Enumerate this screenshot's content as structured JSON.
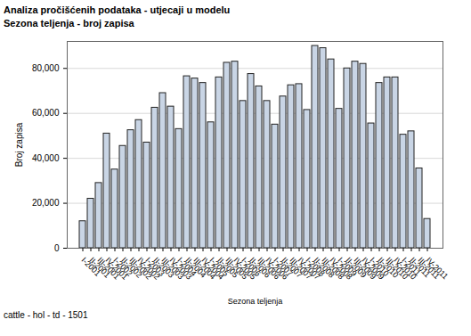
{
  "chart_data": {
    "type": "bar",
    "title": "Analiza pročišćenih podataka - utjecaji u modelu",
    "subtitle": "Sezona teljenja - broj zapisa",
    "caption": "cattle - hol - td - 1501",
    "x_label": "Sezona teljenja",
    "y_label": "Broj zapisa",
    "categories": [
      "I-2001",
      "II-2001",
      "III-2001",
      "IV-2001",
      "I-2002",
      "II-2002",
      "III-2002",
      "IV-2002",
      "I-2003",
      "II-2003",
      "III-2003",
      "IV-2003",
      "I-2004",
      "II-2004",
      "III-2004",
      "IV-2004",
      "I-2005",
      "II-2005",
      "III-2005",
      "IV-2005",
      "I-2006",
      "II-2006",
      "III-2006",
      "IV-2006",
      "I-2007",
      "II-2007",
      "III-2007",
      "IV-2007",
      "I-2008",
      "II-2008",
      "III-2008",
      "IV-2008",
      "I-2009",
      "II-2009",
      "III-2009",
      "IV-2009",
      "I-2010",
      "II-2010",
      "III-2010",
      "IV-2010",
      "I-2011",
      "II-2011",
      "III-2011",
      "IV-2011"
    ],
    "values": [
      12000,
      22000,
      29000,
      51000,
      35000,
      45500,
      52500,
      57000,
      47000,
      62500,
      69000,
      63000,
      53000,
      76500,
      75500,
      73500,
      56000,
      76000,
      82500,
      83000,
      65500,
      77500,
      72000,
      65500,
      55000,
      67500,
      72500,
      73000,
      61500,
      90000,
      89000,
      84000,
      62000,
      80000,
      83000,
      82000,
      55500,
      73500,
      76000,
      76000,
      50500,
      52000,
      35500,
      13000
    ],
    "color": "#c9d5e5",
    "ylim": [
      0,
      92000
    ],
    "yticks": [
      0,
      20000,
      40000,
      60000,
      80000
    ],
    "grid": true
  }
}
